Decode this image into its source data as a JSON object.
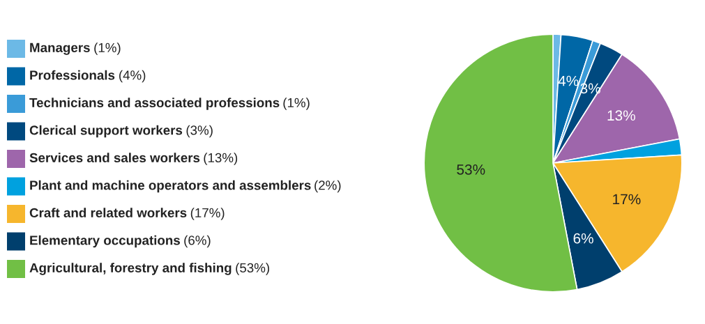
{
  "chart_data": {
    "type": "pie",
    "categories": [
      "Managers",
      "Professionals",
      "Technicians and associated professions",
      "Clerical support workers",
      "Services and sales workers",
      "Plant and machine operators and assemblers",
      "Craft and related workers",
      "Elementary occupations",
      "Agricultural, forestry and fishing"
    ],
    "values": [
      1,
      4,
      1,
      3,
      13,
      2,
      17,
      6,
      53
    ],
    "colors": [
      "#6cb9e6",
      "#0067a6",
      "#3a9bd8",
      "#00497f",
      "#9e66ab",
      "#00a1df",
      "#f6b62d",
      "#003f6d",
      "#71bf45"
    ],
    "value_labels": [
      null,
      "4%",
      null,
      "3%",
      "13%",
      null,
      "17%",
      "6%",
      "53%"
    ],
    "annotations": [
      "(1%)",
      "(4%)",
      "(1%)",
      "(3%)",
      "(13%)",
      "(2%)",
      "(17%)",
      "(6%)",
      "(53%)"
    ],
    "legend": "left"
  }
}
